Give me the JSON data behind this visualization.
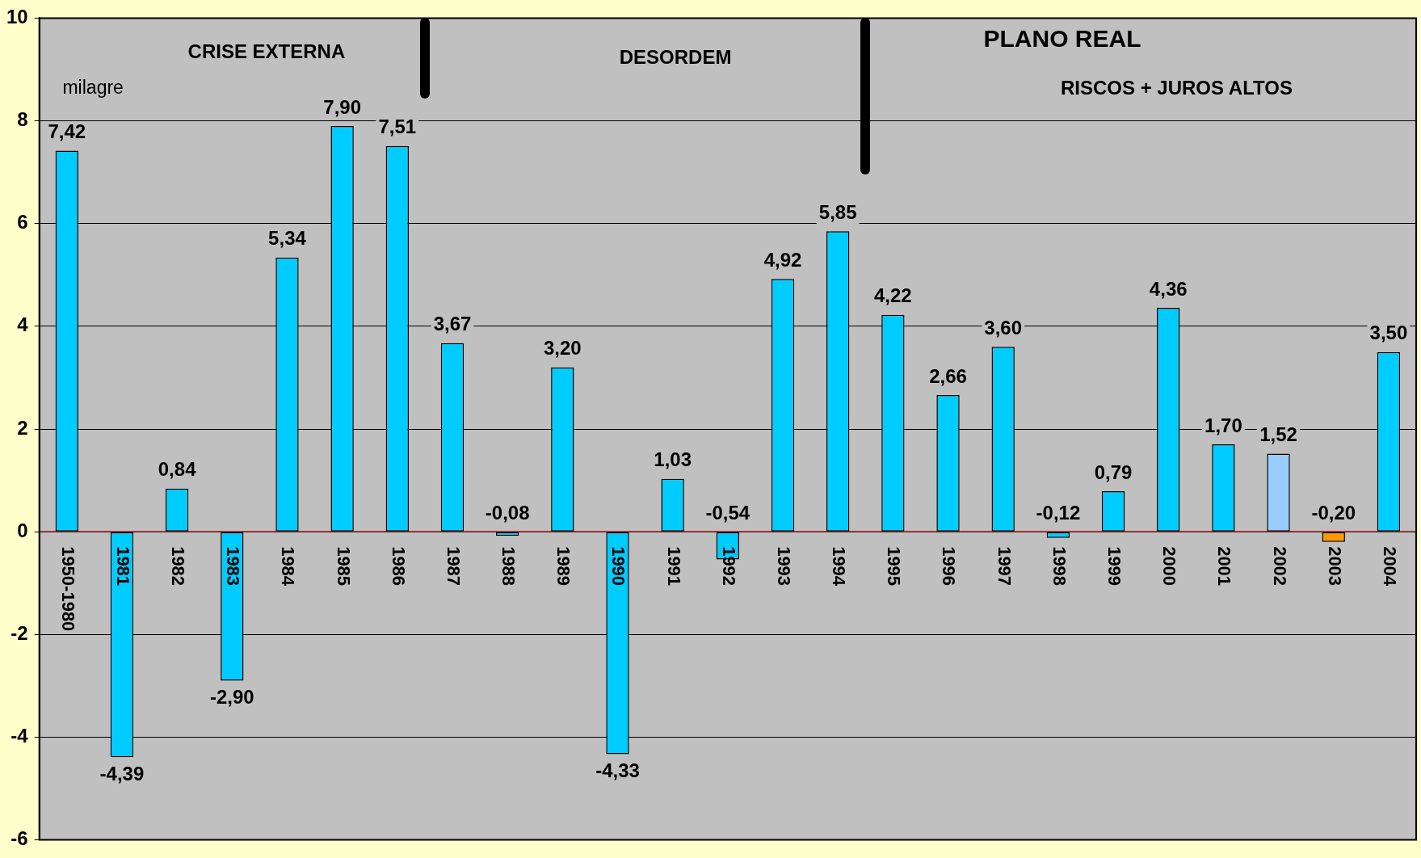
{
  "chart_data": {
    "type": "bar",
    "categories": [
      "1950-1980",
      "1981",
      "1982",
      "1983",
      "1984",
      "1985",
      "1986",
      "1987",
      "1988",
      "1989",
      "1990",
      "1991",
      "1992",
      "1993",
      "1994",
      "1995",
      "1996",
      "1997",
      "1998",
      "1999",
      "2000",
      "2001",
      "2002",
      "2003",
      "2004"
    ],
    "values": [
      7.42,
      -4.39,
      0.84,
      -2.9,
      5.34,
      7.9,
      7.51,
      3.67,
      -0.08,
      3.2,
      -4.33,
      1.03,
      -0.54,
      4.92,
      5.85,
      4.22,
      2.66,
      3.6,
      -0.12,
      0.79,
      4.36,
      1.7,
      1.52,
      -0.2,
      3.5
    ],
    "value_labels": [
      "7,42",
      "-4,39",
      "0,84",
      "-2,90",
      "5,34",
      "7,90",
      "7,51",
      "3,67",
      "-0,08",
      "3,20",
      "-4,33",
      "1,03",
      "-0,54",
      "4,92",
      "5,85",
      "4,22",
      "2,66",
      "3,60",
      "-0,12",
      "0,79",
      "4,36",
      "1,70",
      "1,52",
      "-0,20",
      "3,50"
    ],
    "colors": [
      "#00ccff",
      "#00ccff",
      "#00ccff",
      "#00ccff",
      "#00ccff",
      "#00ccff",
      "#00ccff",
      "#00ccff",
      "#00ccff",
      "#00ccff",
      "#00ccff",
      "#00ccff",
      "#00ccff",
      "#00ccff",
      "#00ccff",
      "#00ccff",
      "#00ccff",
      "#00ccff",
      "#00ccff",
      "#00ccff",
      "#00ccff",
      "#00ccff",
      "#99ccff",
      "#ff9900",
      "#00ccff"
    ],
    "ylim": [
      -6,
      10
    ],
    "yticks": [
      -6,
      -4,
      -2,
      0,
      2,
      4,
      6,
      8,
      10
    ],
    "grid": "y",
    "annotations": [
      "CRISE EXTERNA",
      "DESORDEM",
      "PLANO REAL",
      "RISCOS + JUROS ALTOS",
      "milagre"
    ]
  }
}
